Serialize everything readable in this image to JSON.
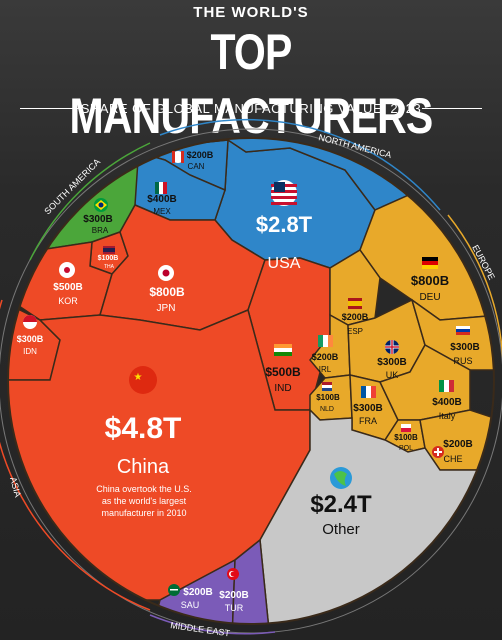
{
  "header": {
    "kicker": "THE WORLD'S",
    "title": "TOP MANUFACTURERS",
    "subtitle": "SHARE OF GLOBAL MANUFACTURING VALUE, 2023"
  },
  "chart_data": {
    "type": "voronoi-treemap",
    "regions": [
      {
        "name": "NORTH AMERICA",
        "color": "#2f86c9"
      },
      {
        "name": "SOUTH AMERICA",
        "color": "#4ba63a"
      },
      {
        "name": "EUROPE",
        "color": "#e8a92a"
      },
      {
        "name": "ASIA",
        "color": "#ee4a26"
      },
      {
        "name": "MIDDLE EAST",
        "color": "#7b5bb8"
      }
    ],
    "items": [
      {
        "id": "usa",
        "value": "$2.8T",
        "name": "USA",
        "region": "NORTH AMERICA"
      },
      {
        "id": "can",
        "value": "$200B",
        "name": "CAN",
        "region": "NORTH AMERICA"
      },
      {
        "id": "mex",
        "value": "$400B",
        "name": "MEX",
        "region": "NORTH AMERICA"
      },
      {
        "id": "bra",
        "value": "$300B",
        "name": "BRA",
        "region": "SOUTH AMERICA"
      },
      {
        "id": "deu",
        "value": "$800B",
        "name": "DEU",
        "region": "EUROPE"
      },
      {
        "id": "esp",
        "value": "$200B",
        "name": "ESP",
        "region": "EUROPE"
      },
      {
        "id": "irl",
        "value": "$200B",
        "name": "IRL",
        "region": "EUROPE"
      },
      {
        "id": "uk",
        "value": "$300B",
        "name": "UK",
        "region": "EUROPE"
      },
      {
        "id": "rus",
        "value": "$300B",
        "name": "RUS",
        "region": "EUROPE"
      },
      {
        "id": "nld",
        "value": "$100B",
        "name": "NLD",
        "region": "EUROPE"
      },
      {
        "id": "fra",
        "value": "$300B",
        "name": "FRA",
        "region": "EUROPE"
      },
      {
        "id": "italy",
        "value": "$400B",
        "name": "Italy",
        "region": "EUROPE"
      },
      {
        "id": "pol",
        "value": "$100B",
        "name": "POL",
        "region": "EUROPE"
      },
      {
        "id": "che",
        "value": "$200B",
        "name": "CHE",
        "region": "EUROPE"
      },
      {
        "id": "china",
        "value": "$4.8T",
        "name": "China",
        "region": "ASIA"
      },
      {
        "id": "kor",
        "value": "$500B",
        "name": "KOR",
        "region": "ASIA"
      },
      {
        "id": "tha",
        "value": "$100B",
        "name": "THA",
        "region": "ASIA"
      },
      {
        "id": "jpn",
        "value": "$800B",
        "name": "JPN",
        "region": "ASIA"
      },
      {
        "id": "idn",
        "value": "$300B",
        "name": "IDN",
        "region": "ASIA"
      },
      {
        "id": "ind",
        "value": "$500B",
        "name": "IND",
        "region": "ASIA"
      },
      {
        "id": "sau",
        "value": "$200B",
        "name": "SAU",
        "region": "MIDDLE EAST"
      },
      {
        "id": "tur",
        "value": "$200B",
        "name": "TUR",
        "region": "MIDDLE EAST"
      },
      {
        "id": "other",
        "value": "$2.4T",
        "name": "Other",
        "region": ""
      }
    ],
    "annotation": [
      "China overtook the U.S.",
      "as the world's largest",
      "manufacturer in 2010"
    ],
    "other_color": "#c8c8c8"
  }
}
